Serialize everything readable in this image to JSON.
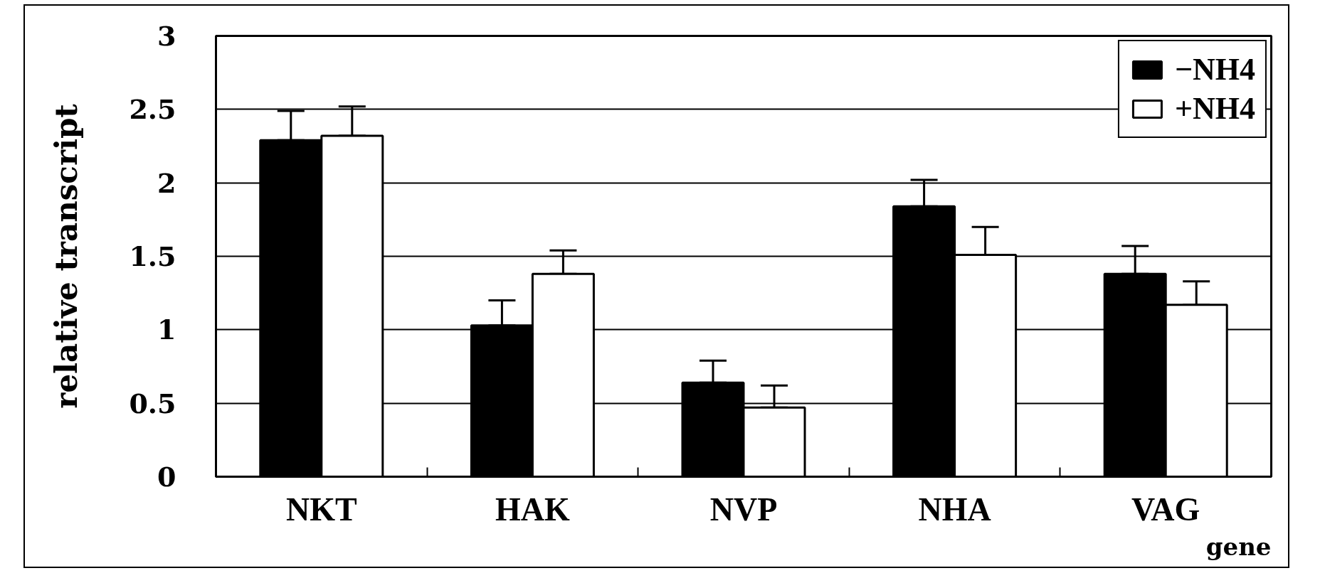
{
  "chart_data": {
    "type": "bar",
    "categories": [
      "NKT",
      "HAK",
      "NVP",
      "NHA",
      "VAG"
    ],
    "series": [
      {
        "name": "−NH4",
        "color": "#000000",
        "values": [
          2.29,
          1.03,
          0.64,
          1.84,
          1.38
        ],
        "errors": [
          [
            2.29,
            2.49
          ],
          [
            1.03,
            1.2
          ],
          [
            0.64,
            0.79
          ],
          [
            1.84,
            2.02
          ],
          [
            1.38,
            1.57
          ]
        ]
      },
      {
        "name": "+NH4",
        "color": "#ffffff",
        "values": [
          2.32,
          1.38,
          0.47,
          1.51,
          1.17
        ],
        "errors": [
          [
            2.32,
            2.52
          ],
          [
            1.38,
            1.54
          ],
          [
            0.47,
            0.62
          ],
          [
            1.51,
            1.7
          ],
          [
            1.17,
            1.33
          ]
        ]
      }
    ],
    "xlabel": "gene",
    "ylabel": "relative transcript",
    "ylim": [
      0,
      3
    ],
    "yticks": [
      0,
      0.5,
      1,
      1.5,
      2,
      2.5,
      3
    ],
    "grid": "y",
    "legend": "top right"
  }
}
